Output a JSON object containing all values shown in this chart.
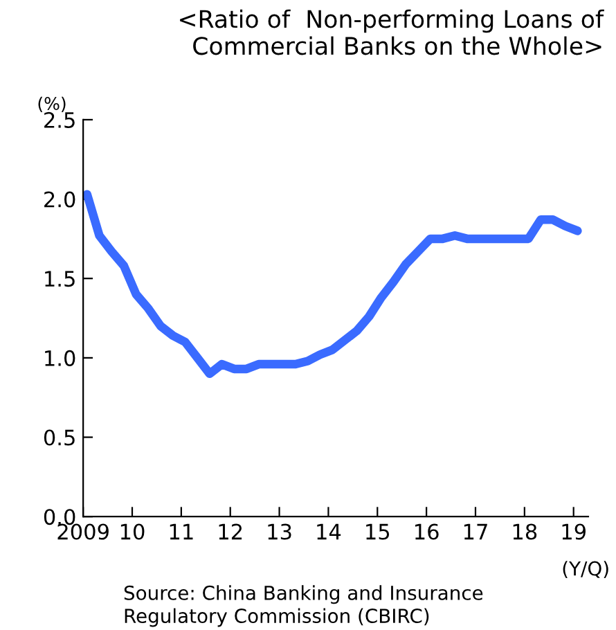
{
  "chart_data": {
    "type": "line",
    "title": "<Ratio of  Non-performing Loans of\nCommercial Banks on the Whole>",
    "ylabel": "(%)",
    "xlabel": "(Y/Q)",
    "annotations": [
      "Source: China Banking and Insurance\nRegulatory Commission (CBIRC)"
    ],
    "x": [
      2009.08,
      2009.33,
      2009.58,
      2009.83,
      2010.08,
      2010.33,
      2010.58,
      2010.83,
      2011.08,
      2011.33,
      2011.58,
      2011.83,
      2012.08,
      2012.33,
      2012.58,
      2012.83,
      2013.08,
      2013.33,
      2013.58,
      2013.83,
      2014.08,
      2014.33,
      2014.58,
      2014.83,
      2015.08,
      2015.33,
      2015.58,
      2015.83,
      2016.08,
      2016.33,
      2016.58,
      2016.83,
      2017.08,
      2017.33,
      2017.58,
      2017.83,
      2018.08,
      2018.33,
      2018.58,
      2018.83,
      2019.08
    ],
    "series": [
      {
        "color": "#3a6bff",
        "values": [
          2.03,
          1.77,
          1.67,
          1.58,
          1.4,
          1.31,
          1.2,
          1.14,
          1.1,
          1.0,
          0.9,
          0.96,
          0.93,
          0.93,
          0.96,
          0.96,
          0.96,
          0.96,
          0.98,
          1.02,
          1.05,
          1.11,
          1.17,
          1.26,
          1.38,
          1.48,
          1.59,
          1.67,
          1.75,
          1.75,
          1.77,
          1.75,
          1.75,
          1.75,
          1.75,
          1.75,
          1.75,
          1.87,
          1.87,
          1.83,
          1.8
        ]
      }
    ],
    "xlim": [
      2009,
      2019.3
    ],
    "xticks": [
      2009,
      {
        "value": 2010,
        "label": "10"
      },
      {
        "value": 2011,
        "label": "11"
      },
      {
        "value": 2012,
        "label": "12"
      },
      {
        "value": 2013,
        "label": "13"
      },
      {
        "value": 2014,
        "label": "14"
      },
      {
        "value": 2015,
        "label": "15"
      },
      {
        "value": 2016,
        "label": "16"
      },
      {
        "value": 2017,
        "label": "17"
      },
      {
        "value": 2018,
        "label": "18"
      },
      {
        "value": 2019,
        "label": "19"
      }
    ],
    "ylim": [
      0,
      2.5
    ],
    "yticks": [
      {
        "value": 0,
        "label": "0.0"
      },
      {
        "value": 0.5,
        "label": "0.5"
      },
      {
        "value": 1,
        "label": "1.0"
      },
      {
        "value": 1.5,
        "label": "1.5"
      },
      {
        "value": 2,
        "label": "2.0"
      },
      {
        "value": 2.5,
        "label": "2.5"
      }
    ],
    "grid": false,
    "legend": false,
    "marker": "none",
    "line_style": "solid"
  }
}
